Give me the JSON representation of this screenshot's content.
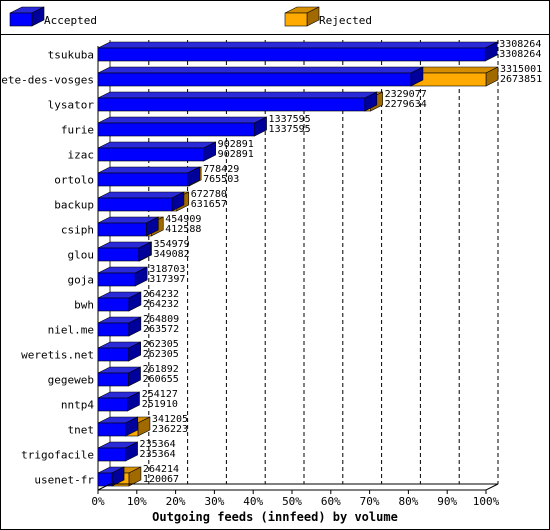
{
  "colors": {
    "accepted_front": "#0000ff",
    "accepted_top": "#2a2ad8",
    "accepted_side": "#00009a",
    "rejected_front": "#ffaa00",
    "rejected_top": "#d68f00",
    "rejected_side": "#a06a00",
    "frame": "#000000",
    "background": "#ffffff"
  },
  "chart_data": {
    "type": "bar",
    "orientation": "horizontal",
    "stacked": true,
    "title": "",
    "xlabel": "Outgoing feeds (innfeed) by volume",
    "ylabel": "",
    "xlim": [
      0,
      100
    ],
    "x_ticks": [
      "0%",
      "10%",
      "20%",
      "30%",
      "40%",
      "50%",
      "60%",
      "70%",
      "80%",
      "90%",
      "100%"
    ],
    "grid": "dashed vertical lines",
    "legend_position": "top",
    "legend": [
      "Accepted",
      "Rejected"
    ],
    "max_value": 3315001,
    "categories": [
      "tsukuba",
      "bete-des-vosges",
      "lysator",
      "furie",
      "izac",
      "ortolo",
      "backup",
      "csiph",
      "glou",
      "goja",
      "bwh",
      "niel.me",
      "weretis.net",
      "gegeweb",
      "nntp4",
      "tnet",
      "trigofacile",
      "usenet-fr"
    ],
    "totals": [
      3308264,
      3315001,
      2329077,
      1337595,
      902891,
      778429,
      672780,
      454909,
      354979,
      318703,
      264232,
      264809,
      262305,
      261892,
      254127,
      341205,
      235364,
      264214
    ],
    "accepted": [
      3308264,
      2673851,
      2279634,
      1337595,
      902891,
      765503,
      631657,
      412588,
      349082,
      317397,
      264232,
      263572,
      262305,
      260655,
      251910,
      236223,
      235364,
      120067
    ],
    "total_labels": [
      "3308264",
      "3315001",
      "2329077",
      "1337595",
      "902891",
      "778429",
      "672780",
      "454909",
      "354979",
      "318703",
      "264232",
      "264809",
      "262305",
      "261892",
      "254127",
      "341205",
      "235364",
      "264214"
    ],
    "accepted_labels": [
      "3308264",
      "2673851",
      "2279634",
      "1337595",
      "902891",
      "765503",
      "631657",
      "412588",
      "349082",
      "317397",
      "264232",
      "263572",
      "262305",
      "260655",
      "251910",
      "236223",
      "235364",
      "120067"
    ]
  }
}
